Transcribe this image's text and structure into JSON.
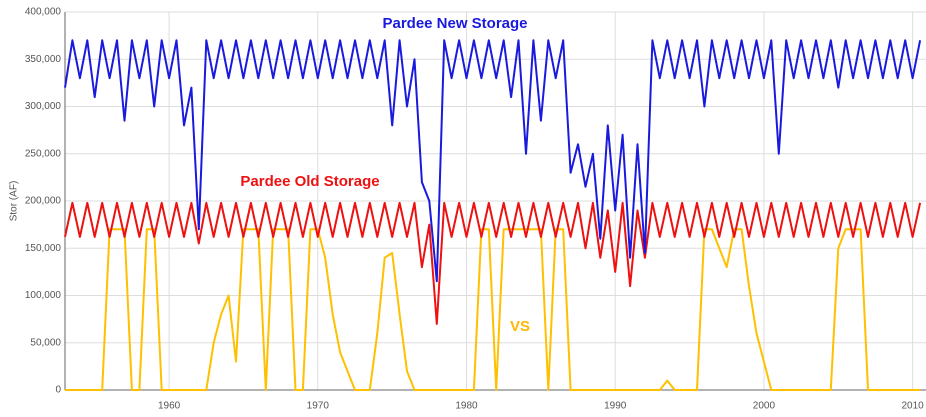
{
  "chart_data": {
    "type": "line",
    "y_label": "Stor (AF)",
    "annotations": [
      {
        "text": "Pardee New Storage",
        "color": "#1a1adf"
      },
      {
        "text": "Pardee Old Storage",
        "color": "#ee1111"
      },
      {
        "text": "VS",
        "color": "#ffb800"
      }
    ],
    "x": [
      1953,
      1953.5,
      1954,
      1954.5,
      1955,
      1955.5,
      1956,
      1956.5,
      1957,
      1957.5,
      1958,
      1958.5,
      1959,
      1959.5,
      1960,
      1960.5,
      1961,
      1961.5,
      1962,
      1962.5,
      1963,
      1963.5,
      1964,
      1964.5,
      1965,
      1965.5,
      1966,
      1966.5,
      1967,
      1967.5,
      1968,
      1968.5,
      1969,
      1969.5,
      1970,
      1970.5,
      1971,
      1971.5,
      1972,
      1972.5,
      1973,
      1973.5,
      1974,
      1974.5,
      1975,
      1975.5,
      1976,
      1976.5,
      1977,
      1977.5,
      1978,
      1978.5,
      1979,
      1979.5,
      1980,
      1980.5,
      1981,
      1981.5,
      1982,
      1982.5,
      1983,
      1983.5,
      1984,
      1984.5,
      1985,
      1985.5,
      1986,
      1986.5,
      1987,
      1987.5,
      1988,
      1988.5,
      1989,
      1989.5,
      1990,
      1990.5,
      1991,
      1991.5,
      1992,
      1992.5,
      1993,
      1993.5,
      1994,
      1994.5,
      1995,
      1995.5,
      1996,
      1996.5,
      1997,
      1997.5,
      1998,
      1998.5,
      1999,
      1999.5,
      2000,
      2000.5,
      2001,
      2001.5,
      2002,
      2002.5,
      2003,
      2003.5,
      2004,
      2004.5,
      2005,
      2005.5,
      2006,
      2006.5,
      2007,
      2007.5,
      2008,
      2008.5,
      2009,
      2009.5,
      2010,
      2010.5
    ],
    "series": [
      {
        "name": "Pardee New Storage",
        "color": "#1a1adf",
        "values": [
          320000,
          370000,
          330000,
          370000,
          310000,
          370000,
          330000,
          370000,
          285000,
          370000,
          330000,
          370000,
          300000,
          370000,
          330000,
          370000,
          280000,
          320000,
          170000,
          370000,
          330000,
          370000,
          330000,
          370000,
          330000,
          370000,
          330000,
          370000,
          330000,
          370000,
          330000,
          370000,
          330000,
          370000,
          330000,
          370000,
          330000,
          370000,
          330000,
          370000,
          330000,
          370000,
          330000,
          370000,
          280000,
          370000,
          300000,
          350000,
          220000,
          200000,
          115000,
          370000,
          330000,
          370000,
          330000,
          370000,
          330000,
          370000,
          330000,
          370000,
          310000,
          370000,
          250000,
          370000,
          285000,
          370000,
          330000,
          370000,
          230000,
          260000,
          215000,
          250000,
          160000,
          280000,
          190000,
          270000,
          140000,
          260000,
          145000,
          370000,
          330000,
          370000,
          330000,
          370000,
          330000,
          370000,
          300000,
          370000,
          330000,
          370000,
          330000,
          370000,
          330000,
          370000,
          330000,
          370000,
          250000,
          370000,
          330000,
          370000,
          330000,
          370000,
          330000,
          370000,
          320000,
          370000,
          330000,
          370000,
          330000,
          370000,
          330000,
          370000,
          330000,
          370000,
          330000,
          370000
        ]
      },
      {
        "name": "Pardee Old Storage",
        "color": "#ee1111",
        "values": [
          162000,
          198000,
          162000,
          198000,
          162000,
          198000,
          162000,
          198000,
          162000,
          198000,
          162000,
          198000,
          162000,
          198000,
          162000,
          198000,
          162000,
          198000,
          155000,
          198000,
          162000,
          198000,
          162000,
          198000,
          162000,
          198000,
          162000,
          198000,
          162000,
          198000,
          162000,
          198000,
          162000,
          198000,
          162000,
          198000,
          162000,
          198000,
          162000,
          198000,
          162000,
          198000,
          162000,
          198000,
          162000,
          198000,
          162000,
          198000,
          130000,
          175000,
          70000,
          198000,
          162000,
          198000,
          162000,
          198000,
          162000,
          198000,
          162000,
          198000,
          162000,
          198000,
          162000,
          198000,
          162000,
          198000,
          162000,
          198000,
          162000,
          198000,
          150000,
          198000,
          140000,
          190000,
          125000,
          198000,
          110000,
          190000,
          140000,
          198000,
          162000,
          198000,
          162000,
          198000,
          162000,
          198000,
          162000,
          198000,
          162000,
          198000,
          162000,
          198000,
          162000,
          198000,
          162000,
          198000,
          162000,
          198000,
          162000,
          198000,
          162000,
          198000,
          162000,
          198000,
          162000,
          198000,
          162000,
          198000,
          162000,
          198000,
          162000,
          198000,
          162000,
          198000,
          162000,
          198000
        ]
      },
      {
        "name": "VS",
        "color": "#ffc000",
        "values": [
          0,
          0,
          0,
          0,
          0,
          0,
          170000,
          170000,
          170000,
          0,
          0,
          170000,
          170000,
          0,
          0,
          0,
          0,
          0,
          0,
          0,
          50000,
          80000,
          100000,
          30000,
          170000,
          170000,
          170000,
          0,
          170000,
          170000,
          170000,
          0,
          0,
          170000,
          170000,
          140000,
          80000,
          40000,
          20000,
          0,
          0,
          0,
          60000,
          140000,
          145000,
          80000,
          20000,
          0,
          0,
          0,
          0,
          0,
          0,
          0,
          0,
          0,
          170000,
          170000,
          0,
          170000,
          170000,
          170000,
          170000,
          170000,
          170000,
          0,
          170000,
          170000,
          0,
          0,
          0,
          0,
          0,
          0,
          0,
          0,
          0,
          0,
          0,
          0,
          0,
          10000,
          0,
          0,
          0,
          0,
          170000,
          170000,
          150000,
          130000,
          170000,
          170000,
          110000,
          60000,
          30000,
          0,
          0,
          0,
          0,
          0,
          0,
          0,
          0,
          0,
          150000,
          170000,
          170000,
          170000,
          0,
          0,
          0,
          0,
          0,
          0,
          0,
          0
        ]
      }
    ],
    "xlim": [
      1953,
      2010.9
    ],
    "xticks": [
      1960,
      1970,
      1980,
      1990,
      2000,
      2010
    ],
    "ylim": [
      0,
      400000
    ],
    "yticks": [
      0,
      {
        "value": 50000,
        "label": "50,000"
      },
      {
        "value": 100000,
        "label": "100,000"
      },
      {
        "value": 150000,
        "label": "150,000"
      },
      {
        "value": 200000,
        "label": "200,000"
      },
      {
        "value": 250000,
        "label": "250,000"
      },
      {
        "value": 300000,
        "label": "300,000"
      },
      {
        "value": 350000,
        "label": "350,000"
      },
      {
        "value": 400000,
        "label": "400,000"
      }
    ],
    "grid": true
  }
}
